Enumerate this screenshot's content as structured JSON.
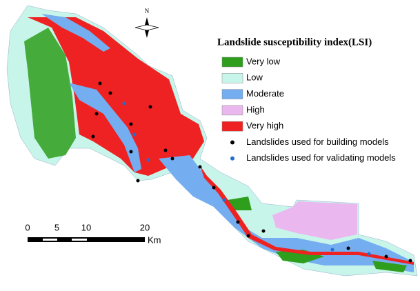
{
  "north_label": "N",
  "legend": {
    "title": "Landslide susceptibility index(LSI)",
    "items": [
      {
        "label": "Very low",
        "color": "#2e9e1c",
        "marker": "box"
      },
      {
        "label": "Low",
        "color": "#c8f5ea",
        "marker": "box"
      },
      {
        "label": "Moderate",
        "color": "#74aef0",
        "marker": "box"
      },
      {
        "label": "High",
        "color": "#eab8ef",
        "marker": "box"
      },
      {
        "label": "Very high",
        "color": "#ee2222",
        "marker": "box"
      },
      {
        "label": "Landslides used for building models",
        "color": "#000000",
        "marker": "dot"
      },
      {
        "label": "Landslides used for validating models",
        "color": "#1f6fd0",
        "marker": "dot"
      }
    ]
  },
  "scale_bar": {
    "ticks": [
      0,
      5,
      10,
      20
    ],
    "unit": "Km"
  }
}
